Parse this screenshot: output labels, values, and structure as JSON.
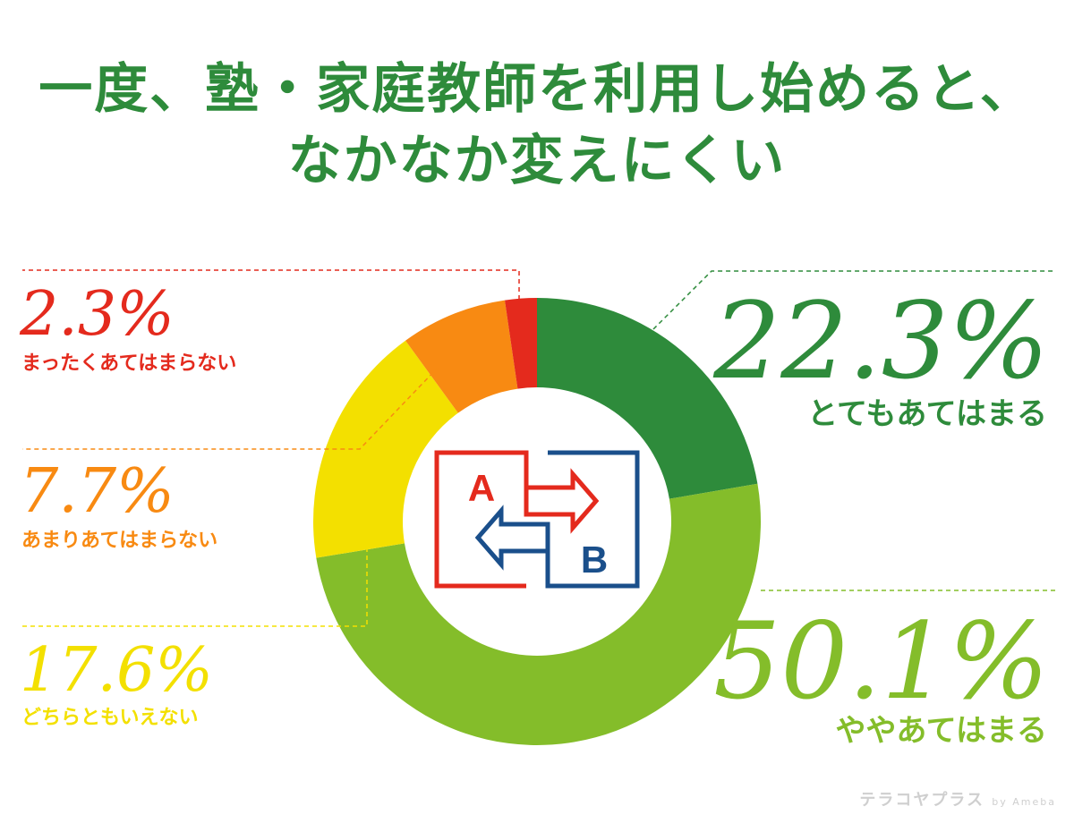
{
  "title": {
    "line1": "一度、塾・家庭教師を利用し始めると、",
    "line2": "なかなか変えにくい"
  },
  "chart_data": {
    "type": "pie",
    "categories": [
      "とてもあてはまる",
      "ややあてはまる",
      "どちらともいえない",
      "あまりあてはまらない",
      "まったくあてはまらない"
    ],
    "values": [
      22.3,
      50.1,
      17.6,
      7.7,
      2.3
    ],
    "value_labels": [
      "22.3%",
      "50.1%",
      "17.6%",
      "7.7%",
      "2.3%"
    ],
    "colors": [
      "#2e8b3b",
      "#84bd2a",
      "#f3e000",
      "#f88a12",
      "#e42a1d"
    ],
    "donut": true,
    "start": "top, clockwise"
  },
  "center_icon": {
    "label_a": "A",
    "label_b": "B",
    "color_a": "#e42a1d",
    "color_b": "#1a4f8b"
  },
  "watermark": {
    "brand": "テラコヤプラス",
    "suffix": "by Ameba"
  }
}
